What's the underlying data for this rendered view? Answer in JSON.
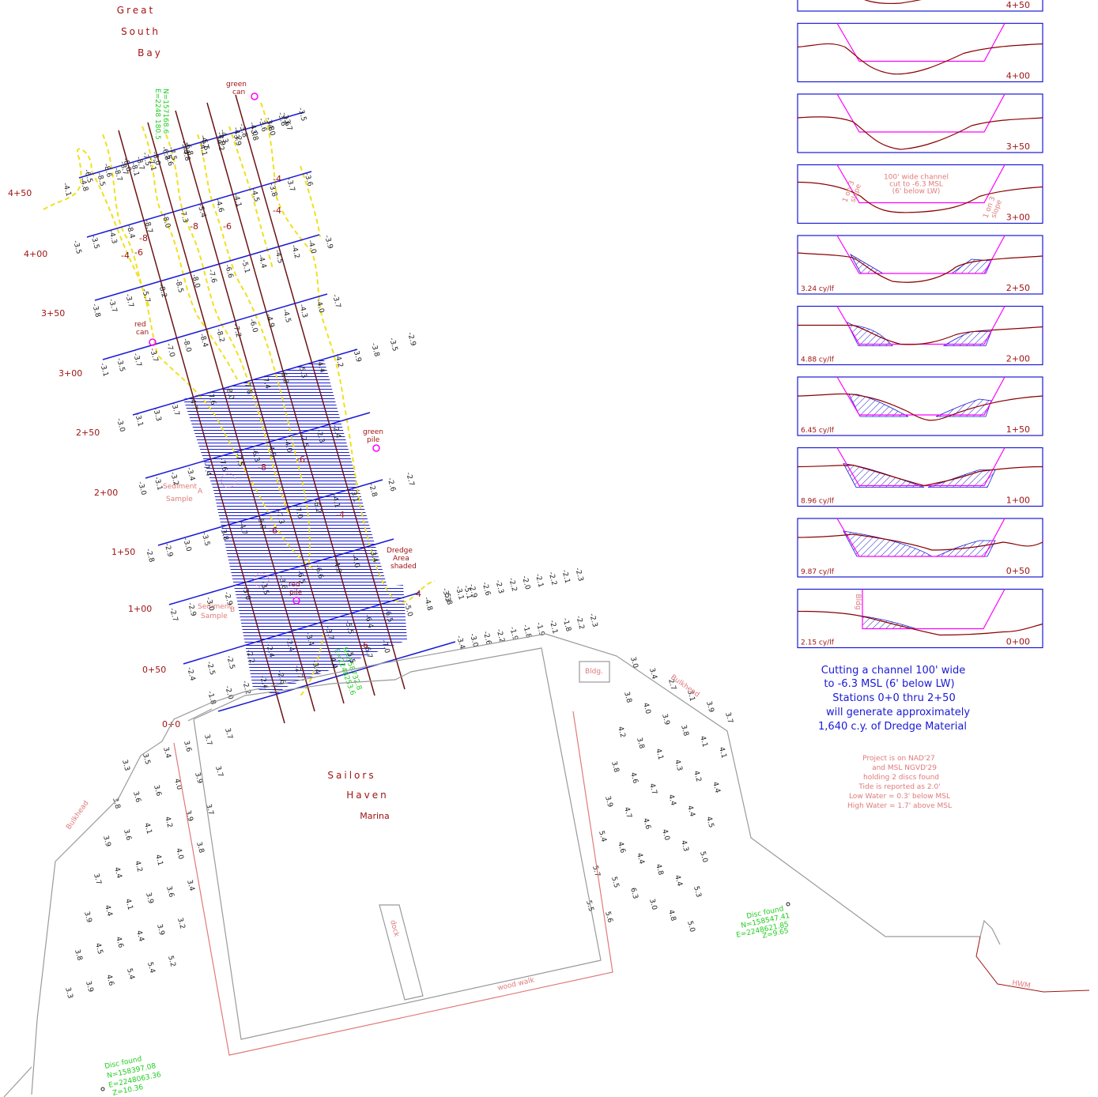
{
  "colors": {
    "line_blue": "#1a1ad6",
    "line_brown": "#6b1414",
    "red_text": "#a01414",
    "pink_text": "#e07a7a",
    "green_text": "#22cc22",
    "magenta": "#ff00ff",
    "contour_yellow": "#f0e020",
    "grey_outline": "#9a9a9a",
    "hatch_blue": "#1a1ad6"
  },
  "title": [
    "Great",
    "South",
    "Bay"
  ],
  "stations_left": [
    "4+50",
    "4+00",
    "3+50",
    "3+00",
    "2+50",
    "2+00",
    "1+50",
    "1+00",
    "0+50",
    "0+0"
  ],
  "labels": {
    "green_can": [
      "green",
      "can"
    ],
    "red_can": [
      "red",
      "can"
    ],
    "green_pile": [
      "green",
      "pile"
    ],
    "red_pile": [
      "red",
      "pile"
    ],
    "dredge_area": [
      "Dredge",
      "Area",
      "shaded"
    ],
    "sediment_a": [
      "Sediment",
      "Sample",
      "A"
    ],
    "sediment_b": [
      "Sediment",
      "Sample",
      "B"
    ],
    "marina": [
      "Sailors",
      "Haven",
      "Marina"
    ],
    "dock": "dock",
    "wood_walk": "wood walk",
    "bldg": "Bldg.",
    "bulkhead_left": "Bulkhead",
    "bulkhead_right": "Bulkhead",
    "hwm": "HWM",
    "coord_top": [
      "N=157168.6",
      "E=2248 180.5"
    ],
    "coord_mid": [
      "N=158732.8",
      "E=2248253.6"
    ],
    "disc_right": [
      "Disc found",
      "N=158547.41",
      "E=2248621.85",
      "Z=9.65"
    ],
    "disc_bottom": [
      "Disc found",
      "N=158397.08",
      "E=2248063.36",
      "Z=10.36"
    ]
  },
  "contour_labels": [
    "-4",
    "-6",
    "-8",
    "-8",
    "-6",
    "-4",
    "-4",
    "-6",
    "-8",
    "-6",
    "-4",
    "-6",
    "-4"
  ],
  "soundings": {
    "row1": [
      "-8.7",
      "-8.7",
      "-8.0",
      "-7.5",
      "-6.8",
      "-5.5",
      "-4.9",
      "-4.2",
      "-4.0",
      "-3.8",
      "-3.6",
      "-3.5"
    ],
    "row2": [
      "-6.5",
      "-8.6",
      "-8.0",
      "-7.5",
      "-6.8",
      "-5.3",
      "-4.7",
      "-4.3",
      "-3.8",
      "-3.6",
      "-3.6"
    ],
    "row3": [
      "-4.1",
      "-4.8",
      "-8.5",
      "-8.7",
      "-8.1",
      "-7.1",
      "-5.6",
      "-4.8",
      "-4.1",
      "-4.2",
      "-3.9",
      "-3.8",
      "-4.0",
      "-3.7"
    ],
    "row4": [
      "-3.5",
      "-3.5",
      "-4.3",
      "-8.4",
      "-8.7",
      "-8.0",
      "-7.3",
      "-5.4",
      "-4.6",
      "-4.1",
      "-4.5",
      "-3.8",
      "-3.7",
      "-3.6"
    ],
    "row5": [
      "-3.8",
      "-3.7",
      "-3.7",
      "-5.7",
      "-8.2",
      "-8.5",
      "-8.0",
      "-7.6",
      "-6.6",
      "-5.1",
      "-4.4",
      "-4.5",
      "-4.2",
      "-4.0",
      "-3.9"
    ],
    "row6": [
      "-3.1",
      "-3.5",
      "-3.7",
      "-3.7",
      "-7.0",
      "-8.0",
      "-8.4",
      "-8.2",
      "-7.2",
      "-6.0",
      "-4.9",
      "-4.5",
      "-4.3",
      "-4.0",
      "-3.7"
    ],
    "row7": [
      "-3.0",
      "-3.1",
      "-3.3",
      "-3.7",
      "-4.7",
      "-7.6",
      "-8.0",
      "-7.8",
      "-7.4",
      "-6.8",
      "-5.3",
      "-4.4",
      "-4.2",
      "-3.9",
      "-3.8",
      "-3.5",
      "-2.9"
    ],
    "row8": [
      "-3.0",
      "-3.1",
      "-3.2",
      "-3.4",
      "-7.4",
      "-7.6",
      "-7.5",
      "-6.3",
      "-4.9",
      "-4.0",
      "-2.5",
      "-2.3",
      "-2.4"
    ],
    "row9": [
      "-2.8",
      "-2.9",
      "-3.0",
      "-3.5",
      "-3.8",
      "-4.7",
      "-5.9",
      "-7.3",
      "-7.0",
      "-6.2",
      "-4.1",
      "-3.1",
      "-2.8",
      "-2.6",
      "-2.7"
    ],
    "row10": [
      "-2.7",
      "-2.9",
      "-3.0",
      "-2.9",
      "-3.0",
      "-3.5",
      "-3.6",
      "-6.5",
      "-6.6",
      "-4.8",
      "-4.0",
      "-3.4"
    ],
    "row11": [
      "-2.4",
      "-2.5",
      "-2.5",
      "-2.2",
      "-2.4",
      "-2.4",
      "-3.4",
      "-3.7",
      "-5.5",
      "-6.4",
      "-6.5",
      "-5.0",
      "-4.8",
      "-5.8",
      "-5.1"
    ],
    "row_sw": [
      "-1.8",
      "-2.0",
      "-2.2",
      "-2.4",
      "-2.6",
      "-2.7",
      "-3.4",
      "-4.4",
      "-5.5",
      "-6.7",
      "-7.0"
    ],
    "row_east1": [
      "-3.3",
      "-3.1",
      "-2.9",
      "-2.6",
      "-2.3",
      "-2.2",
      "-2.0",
      "-2.1",
      "-2.2",
      "-2.1",
      "-2.3"
    ],
    "row_east2": [
      "-3.4",
      "-3.0",
      "-2.6",
      "-2.2",
      "-1.9",
      "-1.8",
      "-1.9",
      "-2.1",
      "-1.8",
      "-2.2",
      "-2.3"
    ],
    "marina_west": [
      "3.3",
      "3.5",
      "3.4",
      "3.6",
      "3.7",
      "3.7",
      "3.8",
      "3.6",
      "3.6",
      "4.0",
      "3.9",
      "3.7",
      "3.9",
      "3.6",
      "4.1",
      "4.2",
      "3.9",
      "3.7",
      "3.7",
      "4.4",
      "4.2",
      "4.1",
      "4.0",
      "3.8",
      "3.9",
      "4.4",
      "4.1",
      "3.9",
      "3.6",
      "3.4",
      "3.8",
      "4.5",
      "4.6",
      "4.4",
      "3.9",
      "3.2",
      "3.3",
      "3.9",
      "4.6",
      "5.4",
      "5.4",
      "5.2"
    ],
    "marina_east": [
      "3.0",
      "3.4",
      "2.7",
      "3.1",
      "3.9",
      "3.7",
      "3.8",
      "4.0",
      "3.9",
      "3.8",
      "4.1",
      "4.1",
      "4.2",
      "3.8",
      "4.1",
      "4.3",
      "4.2",
      "4.4",
      "3.8",
      "4.6",
      "4.7",
      "4.4",
      "4.4",
      "4.5",
      "3.9",
      "4.7",
      "4.6",
      "4.0",
      "4.3",
      "5.0",
      "5.4",
      "4.6",
      "4.4",
      "4.8",
      "4.4",
      "5.3",
      "5.7",
      "5.5",
      "6.3",
      "3.0",
      "4.8",
      "5.0",
      "5.5",
      "5.6"
    ]
  },
  "sections": [
    {
      "station": "4+50",
      "cy": ""
    },
    {
      "station": "4+00",
      "cy": ""
    },
    {
      "station": "3+50",
      "cy": ""
    },
    {
      "station": "3+00",
      "cy": "",
      "notes": [
        "100' wide channel",
        "cut to -6.3 MSL",
        "(6' below LW)"
      ],
      "slope_left": [
        "1 on 3",
        "slope"
      ],
      "slope_right": [
        "1 on 3",
        "slope"
      ]
    },
    {
      "station": "2+50",
      "cy": "3.24 cy/lf"
    },
    {
      "station": "2+00",
      "cy": "4.88 cy/lf"
    },
    {
      "station": "1+50",
      "cy": "6.45 cy/lf"
    },
    {
      "station": "1+00",
      "cy": "8.96 cy/lf"
    },
    {
      "station": "0+50",
      "cy": "9.87 cy/lf"
    },
    {
      "station": "0+00",
      "cy": "2.15 cy/lf",
      "tag": "Bldg"
    }
  ],
  "summary": [
    "Cutting a channel 100' wide",
    "to -6.3 MSL (6' below LW)",
    "Stations 0+0 thru 2+50",
    "will generate approximately",
    "1,640 c.y. of Dredge Material"
  ],
  "notes": [
    "Project is on NAD'27",
    "and MSL NGVD'29",
    "holding 2 discs found",
    "Tide is reported as 2.0'",
    "Low Water = 0.3' below MSL",
    "High Water = 1.7' above MSL"
  ]
}
